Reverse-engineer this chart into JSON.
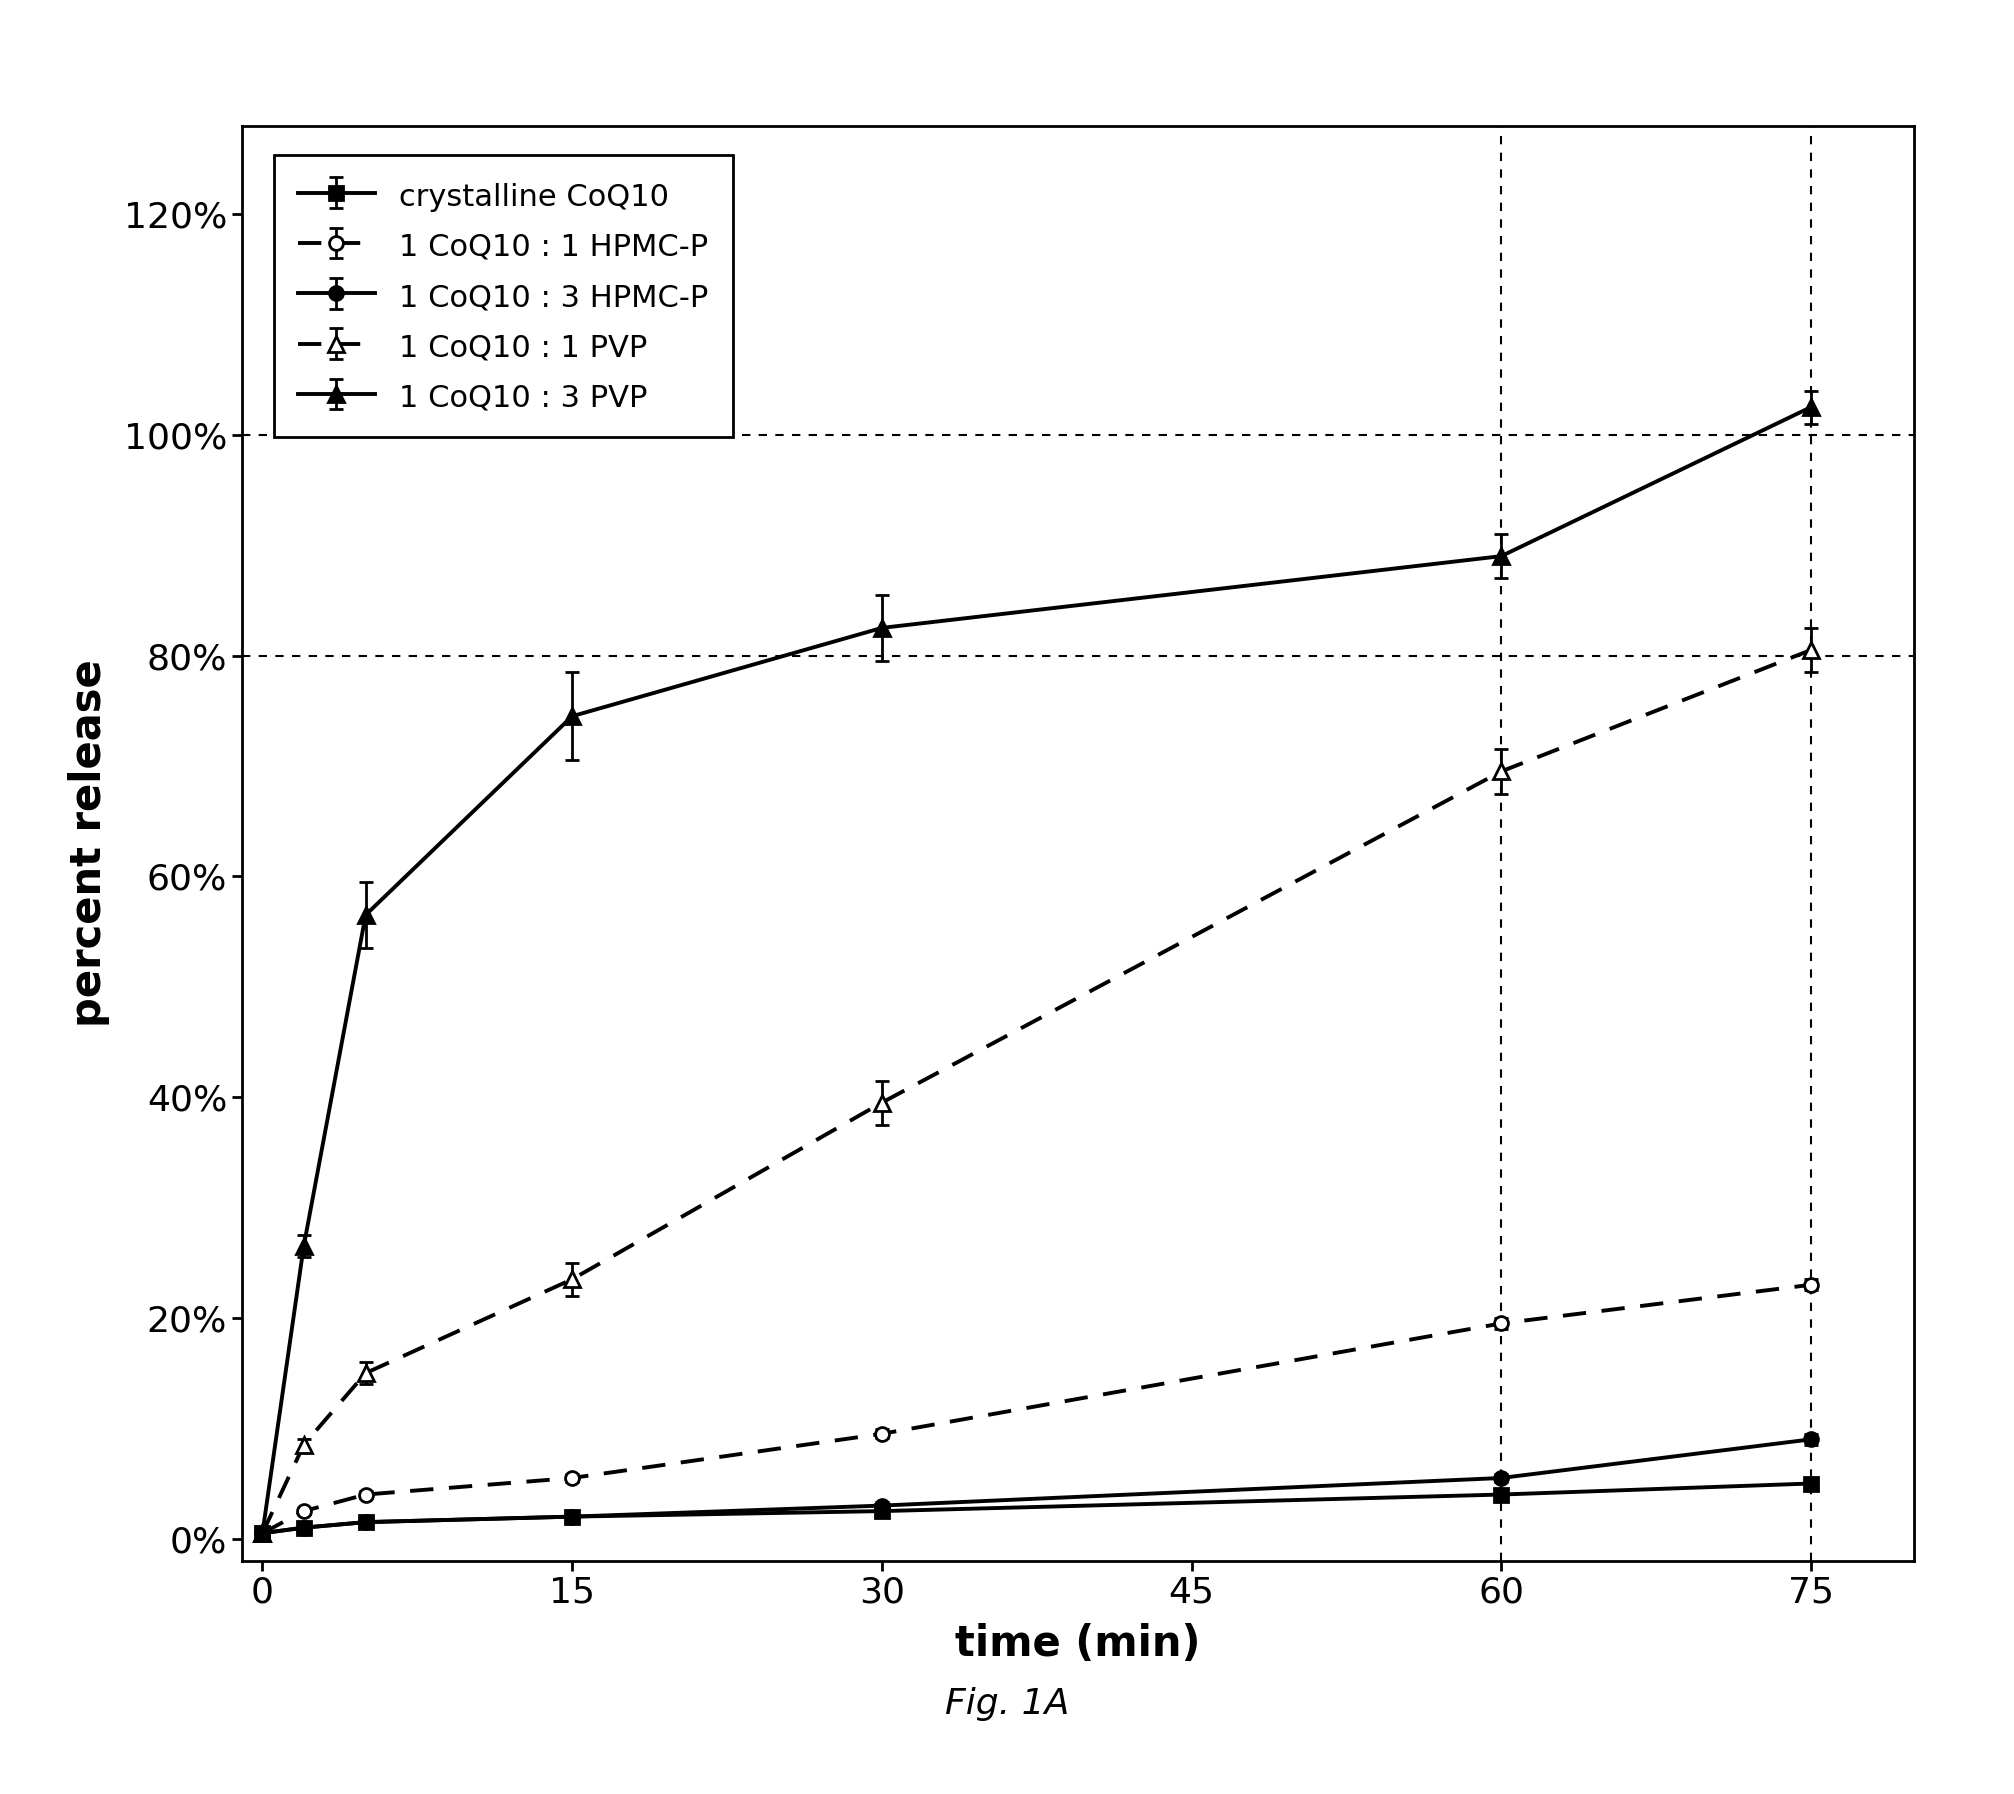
{
  "title": "Fig. 1A",
  "xlabel": "time (min)",
  "ylabel": "percent release",
  "xlim": [
    -1,
    80
  ],
  "ylim": [
    -0.02,
    1.28
  ],
  "xticks": [
    0,
    15,
    30,
    45,
    60,
    75
  ],
  "yticks": [
    0.0,
    0.2,
    0.4,
    0.6,
    0.8,
    1.0,
    1.2
  ],
  "ytick_labels": [
    "0%",
    "20%",
    "40%",
    "60%",
    "80%",
    "100%",
    "120%"
  ],
  "hgrid_lines": [
    0.8,
    1.0
  ],
  "vgrid_lines": [
    60,
    75
  ],
  "series": [
    {
      "label": "crystalline CoQ10",
      "x": [
        0,
        2,
        5,
        15,
        30,
        60,
        75
      ],
      "y": [
        0.005,
        0.01,
        0.015,
        0.02,
        0.025,
        0.04,
        0.05
      ],
      "yerr": [
        0.002,
        0.003,
        0.003,
        0.003,
        0.003,
        0.004,
        0.004
      ],
      "linestyle": "solid",
      "linewidth": 2.8,
      "marker": "s",
      "markersize": 10,
      "color": "black",
      "fillstyle": "full"
    },
    {
      "label": "1 CoQ10 : 1 HPMC-P",
      "x": [
        0,
        2,
        5,
        15,
        30,
        60,
        75
      ],
      "y": [
        0.005,
        0.025,
        0.04,
        0.055,
        0.095,
        0.195,
        0.23
      ],
      "yerr": [
        0.002,
        0.003,
        0.003,
        0.004,
        0.004,
        0.005,
        0.005
      ],
      "linestyle": "dashed",
      "linewidth": 2.8,
      "marker": "o",
      "markersize": 10,
      "color": "black",
      "fillstyle": "none"
    },
    {
      "label": "1 CoQ10 : 3 HPMC-P",
      "x": [
        0,
        2,
        5,
        15,
        30,
        60,
        75
      ],
      "y": [
        0.005,
        0.01,
        0.015,
        0.02,
        0.03,
        0.055,
        0.09
      ],
      "yerr": [
        0.002,
        0.002,
        0.002,
        0.003,
        0.003,
        0.004,
        0.005
      ],
      "linestyle": "solid",
      "linewidth": 2.8,
      "marker": "o",
      "markersize": 10,
      "color": "black",
      "fillstyle": "full"
    },
    {
      "label": "1 CoQ10 : 1 PVP",
      "x": [
        0,
        2,
        5,
        15,
        30,
        60,
        75
      ],
      "y": [
        0.005,
        0.085,
        0.15,
        0.235,
        0.395,
        0.695,
        0.805
      ],
      "yerr": [
        0.002,
        0.005,
        0.01,
        0.015,
        0.02,
        0.02,
        0.02
      ],
      "linestyle": "dashed",
      "linewidth": 2.8,
      "marker": "^",
      "markersize": 12,
      "color": "black",
      "fillstyle": "none"
    },
    {
      "label": "1 CoQ10 : 3 PVP",
      "x": [
        0,
        2,
        5,
        15,
        30,
        60,
        75
      ],
      "y": [
        0.005,
        0.265,
        0.565,
        0.745,
        0.825,
        0.89,
        1.025
      ],
      "yerr": [
        0.002,
        0.01,
        0.03,
        0.04,
        0.03,
        0.02,
        0.015
      ],
      "linestyle": "solid",
      "linewidth": 2.8,
      "marker": "^",
      "markersize": 12,
      "color": "black",
      "fillstyle": "full"
    }
  ],
  "background_color": "white",
  "figure_caption": "Fig. 1A"
}
